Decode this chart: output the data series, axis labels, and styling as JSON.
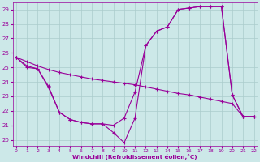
{
  "xlabel": "Windchill (Refroidissement éolien,°C)",
  "bg_color": "#cce8e8",
  "grid_color": "#aacccc",
  "line_color": "#990099",
  "line1_x": [
    0,
    1,
    2,
    3,
    4,
    5,
    6,
    7,
    8,
    9,
    10,
    11,
    12,
    13,
    14,
    15,
    16,
    17,
    18,
    19,
    20,
    21,
    22
  ],
  "line1_y": [
    25.7,
    25.1,
    24.9,
    23.7,
    21.9,
    21.4,
    21.2,
    21.1,
    21.1,
    21.0,
    21.5,
    23.3,
    26.5,
    27.5,
    27.8,
    29.0,
    29.1,
    29.2,
    29.2,
    29.2,
    23.1,
    21.6,
    21.6
  ],
  "line2_x": [
    0,
    1,
    2,
    3,
    4,
    5,
    6,
    7,
    8,
    9,
    10,
    11,
    12,
    13,
    14,
    15,
    16,
    17,
    18,
    19,
    20,
    21,
    22
  ],
  "line2_y": [
    25.7,
    25.4,
    25.1,
    24.85,
    24.65,
    24.5,
    24.35,
    24.2,
    24.1,
    24.0,
    23.9,
    23.8,
    23.65,
    23.5,
    23.35,
    23.2,
    23.1,
    22.95,
    22.8,
    22.65,
    22.5,
    21.6,
    21.6
  ],
  "line3_x": [
    0,
    1,
    2,
    3,
    4,
    5,
    6,
    7,
    8,
    9,
    10,
    11,
    12,
    13,
    14,
    15,
    16,
    17,
    18,
    19,
    20,
    21,
    22
  ],
  "line3_y": [
    25.7,
    25.0,
    24.9,
    23.6,
    21.9,
    21.4,
    21.2,
    21.1,
    21.1,
    20.5,
    19.8,
    21.5,
    26.5,
    27.5,
    27.8,
    29.0,
    29.1,
    29.2,
    29.2,
    29.2,
    23.1,
    21.6,
    21.6
  ],
  "ylim_min": 19.6,
  "ylim_max": 29.5,
  "xlim_min": -0.3,
  "xlim_max": 22.3,
  "yticks": [
    20,
    21,
    22,
    23,
    24,
    25,
    26,
    27,
    28,
    29
  ],
  "xticks": [
    0,
    1,
    2,
    3,
    4,
    5,
    6,
    7,
    8,
    9,
    10,
    11,
    12,
    13,
    14,
    15,
    16,
    17,
    18,
    19,
    20,
    21,
    22
  ]
}
